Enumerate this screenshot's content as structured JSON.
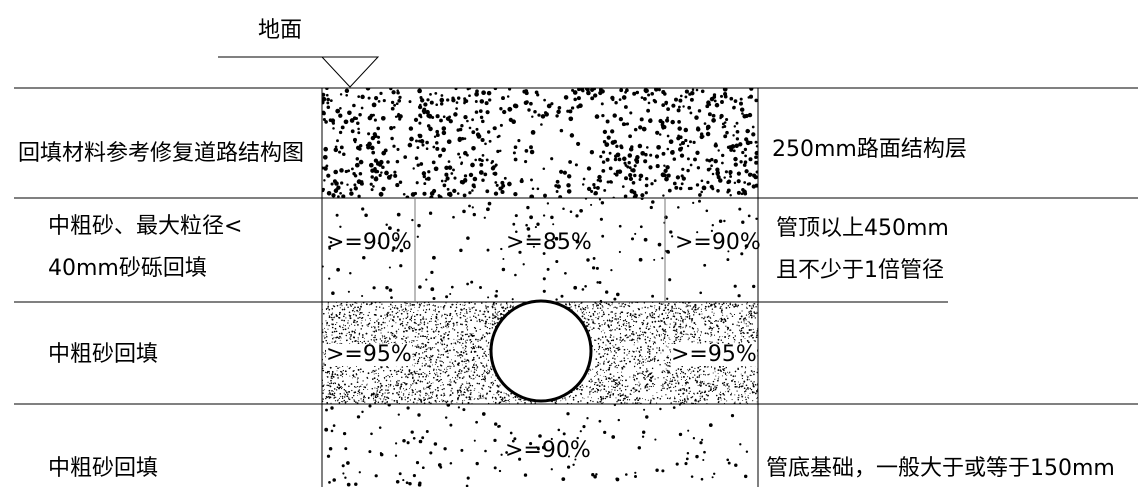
{
  "ground": {
    "label": "地面"
  },
  "rows": [
    {
      "left": "回填材料参考修复道路结构图",
      "right": [
        "250mm路面结构层"
      ]
    },
    {
      "left": [
        "中粗砂、最大粒径<",
        "40mm砂砾回填"
      ],
      "right": [
        "管顶以上450mm",
        "且不少于1倍管径"
      ],
      "compaction": [
        ">=90%",
        ">=85%",
        ">=90%"
      ]
    },
    {
      "left": "中粗砂回填",
      "compaction": [
        ">=95%",
        ">=95%"
      ]
    },
    {
      "left": "中粗砂回填",
      "right": [
        "管底基础，一般大于或等于150mm"
      ],
      "compaction": [
        ">=90%"
      ]
    }
  ]
}
